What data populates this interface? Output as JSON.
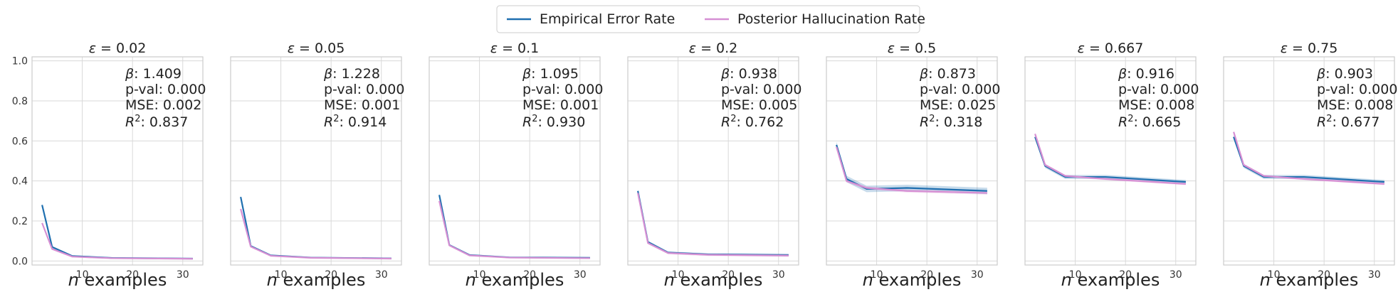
{
  "legend": {
    "placement": "top-center",
    "entries": [
      {
        "label": "Empirical Error Rate",
        "color": "#1f6fb0"
      },
      {
        "label": "Posterior Hallucination Rate",
        "color": "#d68fd3"
      }
    ]
  },
  "chart_data": [
    {
      "type": "line",
      "title_var": "ε",
      "title_value": "= 0.02",
      "xlabel_var": "n",
      "xlabel_rest": " examples",
      "x": [
        2,
        4,
        8,
        16,
        32
      ],
      "xlim": [
        0,
        34
      ],
      "ylim": [
        -0.02,
        1.02
      ],
      "xticks": [
        10,
        20,
        30
      ],
      "yticks": [
        0.0,
        0.2,
        0.4,
        0.6,
        0.8,
        1.0
      ],
      "ytick_labels": [
        "0.0",
        "0.2",
        "0.4",
        "0.6",
        "0.8",
        "1.0"
      ],
      "show_y_ticks": true,
      "grid": true,
      "series": [
        {
          "name": "Empirical Error Rate",
          "color": "#1f6fb0",
          "values": [
            0.28,
            0.07,
            0.025,
            0.015,
            0.012
          ],
          "band": 0.004
        },
        {
          "name": "Posterior Hallucination Rate",
          "color": "#d68fd3",
          "values": [
            0.19,
            0.06,
            0.022,
            0.014,
            0.011
          ],
          "band": 0.004
        }
      ],
      "annotation": [
        {
          "sym": "β",
          "text": ": 1.409"
        },
        {
          "sym": "",
          "text": "p-val: 0.000"
        },
        {
          "sym": "",
          "text": "MSE: 0.002"
        },
        {
          "sym": "R",
          "sup": "2",
          "text": ": 0.837"
        }
      ]
    },
    {
      "type": "line",
      "title_var": "ε",
      "title_value": "= 0.05",
      "xlabel_var": "n",
      "xlabel_rest": " examples",
      "x": [
        2,
        4,
        8,
        16,
        32
      ],
      "xlim": [
        0,
        34
      ],
      "ylim": [
        -0.02,
        1.02
      ],
      "xticks": [
        10,
        20,
        30
      ],
      "yticks": [
        0.0,
        0.2,
        0.4,
        0.6,
        0.8,
        1.0
      ],
      "show_y_ticks": false,
      "grid": true,
      "series": [
        {
          "name": "Empirical Error Rate",
          "color": "#1f6fb0",
          "values": [
            0.32,
            0.075,
            0.028,
            0.017,
            0.013
          ],
          "band": 0.004
        },
        {
          "name": "Posterior Hallucination Rate",
          "color": "#d68fd3",
          "values": [
            0.26,
            0.072,
            0.026,
            0.016,
            0.012
          ],
          "band": 0.004
        }
      ],
      "annotation": [
        {
          "sym": "β",
          "text": ": 1.228"
        },
        {
          "sym": "",
          "text": "p-val: 0.000"
        },
        {
          "sym": "",
          "text": "MSE: 0.001"
        },
        {
          "sym": "R",
          "sup": "2",
          "text": ": 0.914"
        }
      ]
    },
    {
      "type": "line",
      "title_var": "ε",
      "title_value": "= 0.1",
      "xlabel_var": "n",
      "xlabel_rest": " examples",
      "x": [
        2,
        4,
        8,
        16,
        32
      ],
      "xlim": [
        0,
        34
      ],
      "ylim": [
        -0.02,
        1.02
      ],
      "xticks": [
        10,
        20,
        30
      ],
      "yticks": [
        0.0,
        0.2,
        0.4,
        0.6,
        0.8,
        1.0
      ],
      "show_y_ticks": false,
      "grid": true,
      "series": [
        {
          "name": "Empirical Error Rate",
          "color": "#1f6fb0",
          "values": [
            0.33,
            0.08,
            0.03,
            0.018,
            0.016
          ],
          "band": 0.004
        },
        {
          "name": "Posterior Hallucination Rate",
          "color": "#d68fd3",
          "values": [
            0.3,
            0.078,
            0.028,
            0.017,
            0.014
          ],
          "band": 0.004
        }
      ],
      "annotation": [
        {
          "sym": "β",
          "text": ": 1.095"
        },
        {
          "sym": "",
          "text": "p-val: 0.000"
        },
        {
          "sym": "",
          "text": "MSE: 0.001"
        },
        {
          "sym": "R",
          "sup": "2",
          "text": ": 0.930"
        }
      ]
    },
    {
      "type": "line",
      "title_var": "ε",
      "title_value": "= 0.2",
      "xlabel_var": "n",
      "xlabel_rest": " examples",
      "x": [
        2,
        4,
        8,
        16,
        32
      ],
      "xlim": [
        0,
        34
      ],
      "ylim": [
        -0.02,
        1.02
      ],
      "xticks": [
        10,
        20,
        30
      ],
      "yticks": [
        0.0,
        0.2,
        0.4,
        0.6,
        0.8,
        1.0
      ],
      "show_y_ticks": false,
      "grid": true,
      "series": [
        {
          "name": "Empirical Error Rate",
          "color": "#1f6fb0",
          "values": [
            0.35,
            0.095,
            0.042,
            0.033,
            0.03
          ],
          "band": 0.006
        },
        {
          "name": "Posterior Hallucination Rate",
          "color": "#d68fd3",
          "values": [
            0.34,
            0.09,
            0.04,
            0.031,
            0.027
          ],
          "band": 0.006
        }
      ],
      "annotation": [
        {
          "sym": "β",
          "text": ": 0.938"
        },
        {
          "sym": "",
          "text": "p-val: 0.000"
        },
        {
          "sym": "",
          "text": "MSE: 0.005"
        },
        {
          "sym": "R",
          "sup": "2",
          "text": ": 0.762"
        }
      ]
    },
    {
      "type": "line",
      "title_var": "ε",
      "title_value": "= 0.5",
      "xlabel_var": "n",
      "xlabel_rest": " examples",
      "x": [
        2,
        4,
        8,
        16,
        32
      ],
      "xlim": [
        0,
        34
      ],
      "ylim": [
        -0.02,
        1.02
      ],
      "xticks": [
        10,
        20,
        30
      ],
      "yticks": [
        0.0,
        0.2,
        0.4,
        0.6,
        0.8,
        1.0
      ],
      "show_y_ticks": false,
      "grid": true,
      "series": [
        {
          "name": "Empirical Error Rate",
          "color": "#1f6fb0",
          "values": [
            0.58,
            0.41,
            0.36,
            0.365,
            0.35
          ],
          "band": 0.016
        },
        {
          "name": "Posterior Hallucination Rate",
          "color": "#d68fd3",
          "values": [
            0.57,
            0.4,
            0.365,
            0.35,
            0.34
          ],
          "band": 0.008
        }
      ],
      "annotation": [
        {
          "sym": "β",
          "text": ": 0.873"
        },
        {
          "sym": "",
          "text": "p-val: 0.000"
        },
        {
          "sym": "",
          "text": "MSE: 0.025"
        },
        {
          "sym": "R",
          "sup": "2",
          "text": ": 0.318"
        }
      ]
    },
    {
      "type": "line",
      "title_var": "ε",
      "title_value": "= 0.667",
      "xlabel_var": "n",
      "xlabel_rest": " examples",
      "x": [
        2,
        4,
        8,
        16,
        32
      ],
      "xlim": [
        0,
        34
      ],
      "ylim": [
        -0.02,
        1.02
      ],
      "xticks": [
        10,
        20,
        30
      ],
      "yticks": [
        0.0,
        0.2,
        0.4,
        0.6,
        0.8,
        1.0
      ],
      "show_y_ticks": false,
      "grid": true,
      "series": [
        {
          "name": "Empirical Error Rate",
          "color": "#1f6fb0",
          "values": [
            0.62,
            0.475,
            0.42,
            0.42,
            0.395
          ],
          "band": 0.01
        },
        {
          "name": "Posterior Hallucination Rate",
          "color": "#d68fd3",
          "values": [
            0.635,
            0.48,
            0.425,
            0.41,
            0.385
          ],
          "band": 0.006
        }
      ],
      "annotation": [
        {
          "sym": "β",
          "text": ": 0.916"
        },
        {
          "sym": "",
          "text": "p-val: 0.000"
        },
        {
          "sym": "",
          "text": "MSE: 0.008"
        },
        {
          "sym": "R",
          "sup": "2",
          "text": ": 0.665"
        }
      ]
    },
    {
      "type": "line",
      "title_var": "ε",
      "title_value": "= 0.75",
      "xlabel_var": "n",
      "xlabel_rest": " examples",
      "x": [
        2,
        4,
        8,
        16,
        32
      ],
      "xlim": [
        0,
        34
      ],
      "ylim": [
        -0.02,
        1.02
      ],
      "xticks": [
        10,
        20,
        30
      ],
      "yticks": [
        0.0,
        0.2,
        0.4,
        0.6,
        0.8,
        1.0
      ],
      "show_y_ticks": false,
      "grid": true,
      "series": [
        {
          "name": "Empirical Error Rate",
          "color": "#1f6fb0",
          "values": [
            0.62,
            0.475,
            0.42,
            0.42,
            0.395
          ],
          "band": 0.01
        },
        {
          "name": "Posterior Hallucination Rate",
          "color": "#d68fd3",
          "values": [
            0.645,
            0.48,
            0.425,
            0.41,
            0.385
          ],
          "band": 0.006
        }
      ],
      "annotation": [
        {
          "sym": "β",
          "text": ": 0.903"
        },
        {
          "sym": "",
          "text": "p-val: 0.000"
        },
        {
          "sym": "",
          "text": "MSE: 0.008"
        },
        {
          "sym": "R",
          "sup": "2",
          "text": ": 0.677"
        }
      ]
    }
  ]
}
